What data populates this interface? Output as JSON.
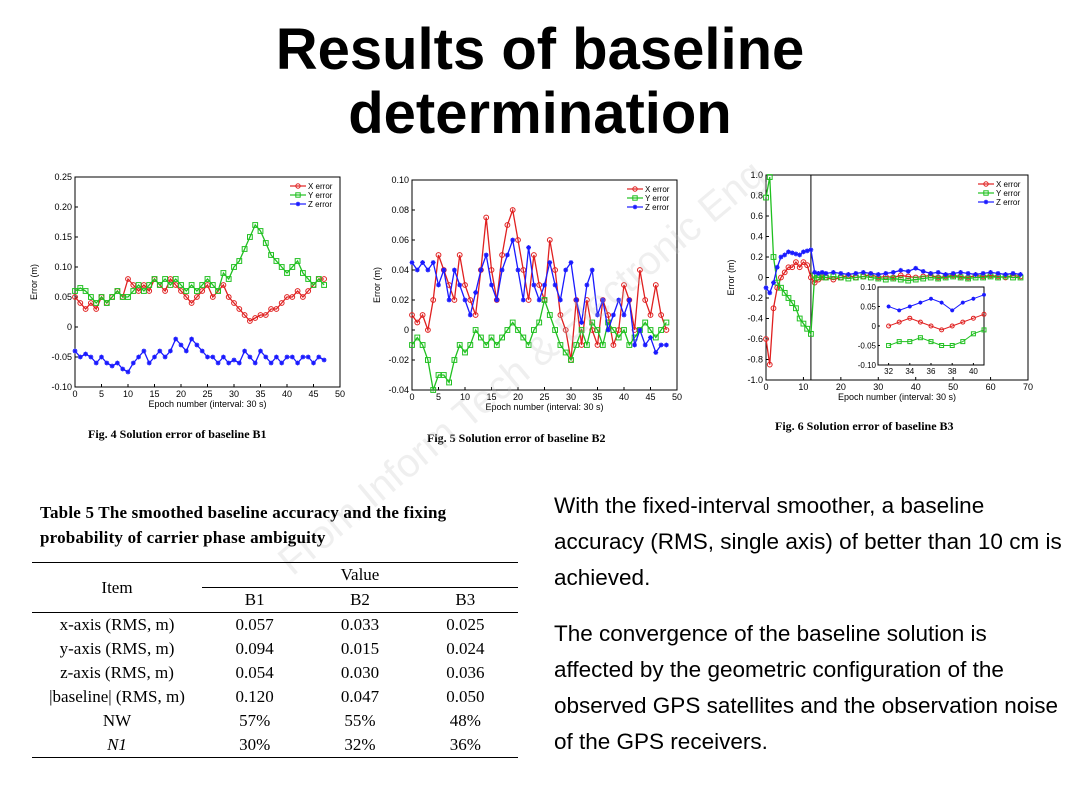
{
  "slide": {
    "title_line1": "Results of baseline",
    "title_line2": "determination",
    "watermark": "From Inform Tech & Electronic Eng"
  },
  "figures": {
    "fig4_caption": "Fig. 4  Solution error of baseline B1",
    "fig5_caption": "Fig. 5  Solution error of baseline B2",
    "fig6_caption": "Fig. 6  Solution error of baseline B3"
  },
  "colors": {
    "x": "#e02020",
    "y": "#20c020",
    "z": "#1a1aff"
  },
  "table": {
    "caption": "Table 5   The smoothed baseline accuracy and the fixing probability of carrier phase ambiguity",
    "col_item": "Item",
    "col_value": "Value",
    "col_b1": "B1",
    "col_b2": "B2",
    "col_b3": "B3",
    "rows": [
      {
        "item": "x-axis (RMS, m)",
        "b1": "0.057",
        "b2": "0.033",
        "b3": "0.025"
      },
      {
        "item": "y-axis (RMS, m)",
        "b1": "0.094",
        "b2": "0.015",
        "b3": "0.024"
      },
      {
        "item": "z-axis (RMS, m)",
        "b1": "0.054",
        "b2": "0.030",
        "b3": "0.036"
      },
      {
        "item": "|baseline| (RMS, m)",
        "b1": "0.120",
        "b2": "0.047",
        "b3": "0.050"
      },
      {
        "item": "NW",
        "b1": "57%",
        "b2": "55%",
        "b3": "48%"
      },
      {
        "item": "N1",
        "b1": "30%",
        "b2": "32%",
        "b3": "36%"
      }
    ]
  },
  "text": {
    "para1": "With the fixed-interval smoother, a baseline accuracy (RMS, single axis) of better than 10 cm is achieved.",
    "para2": "The convergence of the baseline solution is affected by the geometric configuration of the observed GPS satellites and the observation noise of the GPS receivers."
  },
  "chart_data": [
    {
      "type": "line",
      "xlabel": "Epoch number (interval: 30 s)",
      "ylabel": "Error (m)",
      "xlim": [
        0,
        50
      ],
      "ylim": [
        -0.1,
        0.25
      ],
      "xticks": [
        0,
        5,
        10,
        15,
        20,
        25,
        30,
        35,
        40,
        45,
        50
      ],
      "yticks": [
        -0.1,
        -0.05,
        0,
        0.05,
        0.1,
        0.15,
        0.2,
        0.25
      ],
      "ytick_labels": [
        "-0.10",
        "-0.05",
        "0",
        "0.05",
        "0.10",
        "0.15",
        "0.20",
        "0.25"
      ],
      "legend": "top-right",
      "x": [
        0,
        1,
        2,
        3,
        4,
        5,
        6,
        7,
        8,
        9,
        10,
        11,
        12,
        13,
        14,
        15,
        16,
        17,
        18,
        19,
        20,
        21,
        22,
        23,
        24,
        25,
        26,
        27,
        28,
        29,
        30,
        31,
        32,
        33,
        34,
        35,
        36,
        37,
        38,
        39,
        40,
        41,
        42,
        43,
        44,
        45,
        46,
        47
      ],
      "series": [
        {
          "name": "X error",
          "marker": "circle",
          "values": [
            0.05,
            0.04,
            0.03,
            0.04,
            0.03,
            0.05,
            0.04,
            0.05,
            0.06,
            0.05,
            0.08,
            0.07,
            0.06,
            0.07,
            0.06,
            0.08,
            0.07,
            0.06,
            0.08,
            0.07,
            0.06,
            0.05,
            0.04,
            0.05,
            0.06,
            0.07,
            0.05,
            0.06,
            0.07,
            0.05,
            0.04,
            0.03,
            0.02,
            0.01,
            0.015,
            0.02,
            0.02,
            0.03,
            0.03,
            0.04,
            0.05,
            0.05,
            0.06,
            0.05,
            0.06,
            0.07,
            0.08,
            0.08
          ]
        },
        {
          "name": "Y error",
          "marker": "square",
          "values": [
            0.06,
            0.065,
            0.06,
            0.05,
            0.04,
            0.05,
            0.04,
            0.05,
            0.06,
            0.05,
            0.05,
            0.06,
            0.07,
            0.06,
            0.07,
            0.08,
            0.07,
            0.08,
            0.07,
            0.08,
            0.07,
            0.06,
            0.07,
            0.06,
            0.07,
            0.08,
            0.07,
            0.06,
            0.09,
            0.08,
            0.1,
            0.11,
            0.13,
            0.15,
            0.17,
            0.16,
            0.14,
            0.12,
            0.11,
            0.1,
            0.09,
            0.1,
            0.11,
            0.09,
            0.08,
            0.07,
            0.08,
            0.07
          ]
        },
        {
          "name": "Z error",
          "marker": "star",
          "values": [
            -0.04,
            -0.05,
            -0.045,
            -0.05,
            -0.06,
            -0.05,
            -0.06,
            -0.065,
            -0.06,
            -0.07,
            -0.075,
            -0.06,
            -0.05,
            -0.04,
            -0.06,
            -0.05,
            -0.04,
            -0.05,
            -0.04,
            -0.02,
            -0.03,
            -0.04,
            -0.02,
            -0.03,
            -0.04,
            -0.05,
            -0.05,
            -0.06,
            -0.05,
            -0.06,
            -0.055,
            -0.06,
            -0.04,
            -0.05,
            -0.06,
            -0.04,
            -0.05,
            -0.06,
            -0.05,
            -0.06,
            -0.05,
            -0.05,
            -0.06,
            -0.05,
            -0.05,
            -0.06,
            -0.05,
            -0.055
          ]
        }
      ]
    },
    {
      "type": "line",
      "xlabel": "Epoch number (interval: 30 s)",
      "ylabel": "Error (m)",
      "xlim": [
        0,
        50
      ],
      "ylim": [
        -0.04,
        0.1
      ],
      "xticks": [
        0,
        5,
        10,
        15,
        20,
        25,
        30,
        35,
        40,
        45,
        50
      ],
      "yticks": [
        -0.04,
        -0.02,
        0,
        0.02,
        0.04,
        0.06,
        0.08,
        0.1
      ],
      "ytick_labels": [
        "-0.04",
        "-0.02",
        "0",
        "0.02",
        "0.04",
        "0.06",
        "0.08",
        "0.10"
      ],
      "legend": "top-right",
      "x": [
        0,
        1,
        2,
        3,
        4,
        5,
        6,
        7,
        8,
        9,
        10,
        11,
        12,
        13,
        14,
        15,
        16,
        17,
        18,
        19,
        20,
        21,
        22,
        23,
        24,
        25,
        26,
        27,
        28,
        29,
        30,
        31,
        32,
        33,
        34,
        35,
        36,
        37,
        38,
        39,
        40,
        41,
        42,
        43,
        44,
        45,
        46,
        47,
        48
      ],
      "series": [
        {
          "name": "X error",
          "marker": "circle",
          "values": [
            0.01,
            0.005,
            0.01,
            0.0,
            0.02,
            0.05,
            0.04,
            0.03,
            0.02,
            0.05,
            0.03,
            0.02,
            0.01,
            0.04,
            0.075,
            0.04,
            0.02,
            0.05,
            0.07,
            0.08,
            0.06,
            0.04,
            0.02,
            0.05,
            0.03,
            0.02,
            0.06,
            0.04,
            0.01,
            0.0,
            -0.02,
            0.02,
            -0.01,
            0.02,
            0.0,
            -0.01,
            0.02,
            0.01,
            -0.01,
            0.0,
            0.03,
            0.02,
            0.0,
            0.04,
            0.02,
            0.01,
            0.03,
            0.01,
            0.0
          ]
        },
        {
          "name": "Y error",
          "marker": "square",
          "values": [
            -0.01,
            -0.005,
            -0.01,
            -0.02,
            -0.04,
            -0.03,
            -0.03,
            -0.035,
            -0.02,
            -0.01,
            -0.015,
            -0.01,
            0.0,
            -0.005,
            -0.01,
            -0.005,
            -0.01,
            -0.005,
            0.0,
            0.005,
            0.0,
            -0.005,
            -0.01,
            0.0,
            0.005,
            0.02,
            0.01,
            0.0,
            -0.01,
            -0.015,
            -0.02,
            -0.01,
            0.0,
            -0.01,
            0.005,
            0.0,
            -0.01,
            0.005,
            0.0,
            -0.005,
            0.0,
            -0.01,
            -0.005,
            0.0,
            0.005,
            0.0,
            -0.005,
            0.0,
            0.005
          ]
        },
        {
          "name": "Z error",
          "marker": "star",
          "values": [
            0.045,
            0.04,
            0.045,
            0.04,
            0.045,
            0.03,
            0.04,
            0.02,
            0.04,
            0.03,
            0.02,
            0.01,
            0.025,
            0.04,
            0.05,
            0.03,
            0.02,
            0.04,
            0.05,
            0.06,
            0.04,
            0.02,
            0.055,
            0.03,
            0.02,
            0.03,
            0.045,
            0.03,
            0.02,
            0.04,
            0.045,
            0.02,
            0.005,
            0.03,
            0.04,
            0.01,
            0.02,
            0.0,
            0.01,
            0.02,
            0.01,
            0.02,
            -0.01,
            0.0,
            -0.01,
            -0.005,
            -0.015,
            -0.01,
            -0.01
          ]
        }
      ]
    },
    {
      "type": "line",
      "xlabel": "Epoch number (interval: 30 s)",
      "ylabel": "Error (m)",
      "xlim": [
        0,
        70
      ],
      "ylim": [
        -1.0,
        1.0
      ],
      "xticks": [
        0,
        10,
        20,
        30,
        40,
        50,
        60,
        70
      ],
      "yticks": [
        -1.0,
        -0.8,
        -0.6,
        -0.4,
        -0.2,
        0,
        0.2,
        0.4,
        0.6,
        0.8,
        1.0
      ],
      "ytick_labels": [
        "-1.0",
        "-0.8",
        "-0.6",
        "-0.4",
        "-0.2",
        "0",
        "0.2",
        "0.4",
        "0.6",
        "0.8",
        "1.0"
      ],
      "vline": 12,
      "legend": "top-right",
      "series": [
        {
          "name": "X error",
          "marker": "circle",
          "x": [
            0,
            1,
            2,
            3,
            4,
            5,
            6,
            7,
            8,
            9,
            10,
            11,
            12,
            13,
            14,
            15,
            16,
            18,
            20,
            22,
            24,
            26,
            28,
            30,
            32,
            34,
            36,
            38,
            40,
            42,
            44,
            46,
            48,
            50,
            52,
            54,
            56,
            58,
            60,
            62,
            64,
            66,
            68
          ],
          "values": [
            -0.6,
            -0.85,
            -0.3,
            -0.1,
            0.0,
            0.05,
            0.1,
            0.1,
            0.15,
            0.1,
            0.15,
            0.12,
            0.0,
            -0.05,
            -0.02,
            0.0,
            0.0,
            -0.02,
            0.0,
            0.02,
            0.0,
            0.01,
            0.03,
            0.0,
            0.01,
            0.0,
            0.02,
            0.01,
            0.0,
            0.01,
            0.02,
            0.0,
            0.01,
            0.02,
            0.01,
            0.0,
            0.02,
            0.01,
            0.02,
            0.01,
            0.0,
            0.02,
            0.01
          ]
        },
        {
          "name": "Y error",
          "marker": "square",
          "x": [
            0,
            1,
            2,
            3,
            4,
            5,
            6,
            7,
            8,
            9,
            10,
            11,
            12,
            13,
            14,
            15,
            16,
            18,
            20,
            22,
            24,
            26,
            28,
            30,
            32,
            34,
            36,
            38,
            40,
            42,
            44,
            46,
            48,
            50,
            52,
            54,
            56,
            58,
            60,
            62,
            64,
            66,
            68
          ],
          "values": [
            0.78,
            0.98,
            0.2,
            -0.05,
            -0.1,
            -0.15,
            -0.2,
            -0.25,
            -0.3,
            -0.4,
            -0.45,
            -0.5,
            -0.55,
            0.02,
            0.0,
            0.01,
            0.0,
            0.01,
            0.0,
            -0.01,
            0.0,
            0.01,
            0.0,
            -0.01,
            -0.02,
            -0.01,
            -0.02,
            -0.03,
            -0.02,
            -0.01,
            0.0,
            -0.01,
            0.0,
            0.01,
            0.0,
            -0.01,
            0.0,
            0.0,
            0.01,
            0.0,
            0.01,
            0.0,
            0.0
          ]
        },
        {
          "name": "Z error",
          "marker": "star",
          "x": [
            0,
            1,
            2,
            3,
            4,
            5,
            6,
            7,
            8,
            9,
            10,
            11,
            12,
            13,
            14,
            15,
            16,
            18,
            20,
            22,
            24,
            26,
            28,
            30,
            32,
            34,
            36,
            38,
            40,
            42,
            44,
            46,
            48,
            50,
            52,
            54,
            56,
            58,
            60,
            62,
            64,
            66,
            68
          ],
          "values": [
            -0.1,
            -0.15,
            -0.05,
            0.1,
            0.2,
            0.22,
            0.25,
            0.24,
            0.23,
            0.22,
            0.25,
            0.26,
            0.27,
            0.05,
            0.04,
            0.05,
            0.04,
            0.05,
            0.04,
            0.03,
            0.04,
            0.05,
            0.04,
            0.03,
            0.04,
            0.05,
            0.07,
            0.06,
            0.09,
            0.06,
            0.04,
            0.05,
            0.03,
            0.04,
            0.05,
            0.04,
            0.03,
            0.04,
            0.05,
            0.04,
            0.03,
            0.04,
            0.03
          ]
        }
      ],
      "inset": {
        "xlim": [
          31,
          41
        ],
        "ylim": [
          -0.1,
          0.1
        ],
        "xticks": [
          32,
          34,
          36,
          38,
          40
        ],
        "yticks": [
          -0.1,
          -0.05,
          0,
          0.05,
          0.1
        ],
        "ytick_labels": [
          "-0.10",
          "-0.05",
          "0",
          "0.05",
          "0.10"
        ],
        "x": [
          32,
          33,
          34,
          35,
          36,
          37,
          38,
          39,
          40,
          41
        ],
        "series": [
          {
            "name": "X error",
            "values": [
              0.0,
              0.01,
              0.02,
              0.01,
              0.0,
              -0.01,
              0.0,
              0.01,
              0.02,
              0.03
            ]
          },
          {
            "name": "Y error",
            "values": [
              -0.05,
              -0.04,
              -0.04,
              -0.03,
              -0.04,
              -0.05,
              -0.05,
              -0.04,
              -0.02,
              -0.01
            ]
          },
          {
            "name": "Z error",
            "values": [
              0.05,
              0.04,
              0.05,
              0.06,
              0.07,
              0.06,
              0.04,
              0.06,
              0.07,
              0.08
            ]
          }
        ]
      }
    }
  ]
}
